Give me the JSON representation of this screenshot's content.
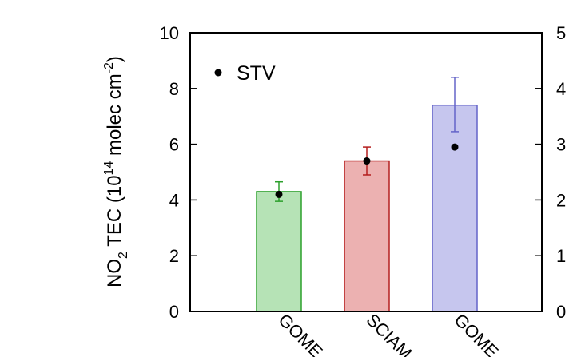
{
  "chart_data": {
    "type": "bar",
    "categories": [
      "GOME",
      "SCIAM",
      "GOME"
    ],
    "series": [
      {
        "values": [
          4.3,
          5.4,
          7.4
        ],
        "error_low": [
          3.95,
          4.9,
          6.45
        ],
        "error_high": [
          4.65,
          5.9,
          8.4
        ],
        "fill_colors": [
          "#b6e3b6",
          "#ecb1b1",
          "#c6c6ee"
        ],
        "edge_colors": [
          "#2ca02c",
          "#b41e1e",
          "#6464c8"
        ]
      },
      {
        "name": "STV",
        "values": [
          4.2,
          5.4,
          5.9
        ],
        "color": "#000000"
      }
    ],
    "ylabel_main": "NO",
    "ylabel_sub": "2",
    "ylabel_mid": " TEC (10",
    "ylabel_sup": "14",
    "ylabel_unit": " molec cm",
    "ylabel_unit_sup": "-2",
    "ylabel_close": ")",
    "ylim": [
      0,
      10
    ],
    "yticks": [
      "0",
      "2",
      "4",
      "6",
      "8",
      "10"
    ],
    "right_ylim": [
      0,
      5
    ],
    "right_yticks": [
      "0",
      "1",
      "2",
      "3",
      "4",
      "5"
    ],
    "legend": {
      "label": "STV",
      "position": "top-left"
    },
    "grid": false
  }
}
